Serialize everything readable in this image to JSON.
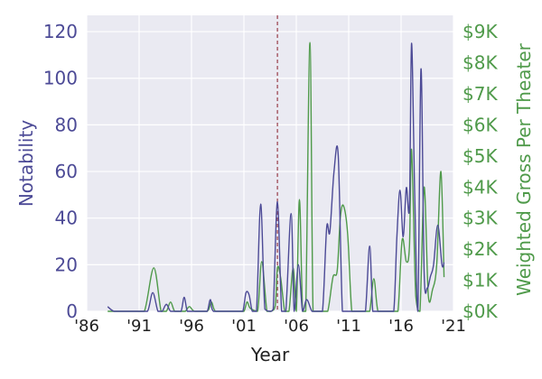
{
  "chart_data": {
    "type": "line",
    "xlabel": "Year",
    "ylabel_left": "Notability",
    "ylabel_right": "Weighted Gross Per Theater",
    "xlim": [
      1986,
      2021
    ],
    "ylim_left": [
      0,
      127
    ],
    "ylim_right": [
      0,
      9525
    ],
    "x_ticks": [
      1986,
      1991,
      1996,
      2001,
      2006,
      2011,
      2016,
      2021
    ],
    "x_tick_labels": [
      "'86",
      "'91",
      "'96",
      "'01",
      "'06",
      "'11",
      "'16",
      "'21"
    ],
    "y_ticks_left": [
      0,
      20,
      40,
      60,
      80,
      100,
      120
    ],
    "y_tick_labels_left": [
      "0",
      "20",
      "40",
      "60",
      "80",
      "100",
      "120"
    ],
    "y_ticks_right": [
      0,
      1000,
      2000,
      3000,
      4000,
      5000,
      6000,
      7000,
      8000,
      9000
    ],
    "y_tick_labels_right": [
      "$0K",
      "$1K",
      "$2K",
      "$3K",
      "$4K",
      "$5K",
      "$6K",
      "$7K",
      "$8K",
      "$9K"
    ],
    "vline_x": 2004.2,
    "grid": true,
    "colors": {
      "background": "#EAEAF2",
      "grid": "#FFFFFF",
      "left_series": "#4C4A96",
      "right_series": "#4F9A4A",
      "vline": "#9E4A55",
      "left_axis_text": "#4C4A96",
      "right_axis_text": "#4F9A4A"
    },
    "series": [
      {
        "axis": "left",
        "x": [
          1988.0,
          1988.6,
          1989.5,
          1991.0,
          1991.8,
          1992.3,
          1992.8,
          1993.2,
          1993.6,
          1994.0,
          1994.5,
          1995.0,
          1995.3,
          1995.6,
          1996.0,
          1997.0,
          1997.5,
          1997.8,
          1998.1,
          1999.5,
          2000.5,
          2000.9,
          2001.2,
          2001.5,
          2001.8,
          2002.2,
          2002.6,
          2003.0,
          2003.5,
          2003.8,
          2004.2,
          2004.6,
          2005.0,
          2005.5,
          2005.8,
          2006.2,
          2006.6,
          2007.0,
          2007.5,
          2008.0,
          2008.5,
          2008.9,
          2009.2,
          2009.6,
          2010.0,
          2010.4,
          2010.8,
          2011.2,
          2011.8,
          2012.2,
          2012.6,
          2013.0,
          2013.3,
          2013.7,
          2014.0,
          2014.8,
          2015.3,
          2015.6,
          2015.9,
          2016.2,
          2016.5,
          2016.8,
          2017.0,
          2017.3,
          2017.6,
          2017.9,
          2018.2,
          2018.5,
          2018.8,
          2019.1,
          2019.5,
          2019.9,
          2020.1
        ],
        "y": [
          2,
          0,
          0,
          0,
          0,
          8,
          0,
          0,
          3,
          0,
          0,
          0,
          6,
          0,
          0,
          0,
          0,
          5,
          0,
          0,
          0,
          0,
          8,
          7,
          0,
          0,
          46,
          1,
          0,
          1,
          47,
          0,
          0,
          42,
          0,
          20,
          0,
          5,
          0,
          0,
          0,
          36,
          34,
          60,
          67,
          0,
          0,
          0,
          0,
          0,
          0,
          28,
          0,
          0,
          0,
          0,
          0,
          32,
          52,
          32,
          53,
          45,
          115,
          50,
          0,
          104,
          17,
          10,
          15,
          20,
          37,
          20,
          21
        ]
      },
      {
        "axis": "right",
        "x": [
          1988.0,
          1990.5,
          1991.5,
          1992.4,
          1993.1,
          1993.6,
          1994.0,
          1994.4,
          1995.0,
          1995.4,
          1995.8,
          1996.3,
          1997.5,
          1997.9,
          1998.3,
          1999.5,
          2000.5,
          2001.0,
          2001.3,
          2001.6,
          2002.3,
          2002.7,
          2003.2,
          2003.6,
          2004.0,
          2004.2,
          2004.5,
          2004.9,
          2005.3,
          2005.7,
          2006.0,
          2006.3,
          2006.6,
          2006.9,
          2007.3,
          2007.6,
          2008.0,
          2008.5,
          2009.0,
          2009.5,
          2009.9,
          2010.2,
          2010.5,
          2010.9,
          2011.3,
          2011.8,
          2012.5,
          2013.0,
          2013.4,
          2013.8,
          2014.5,
          2015.2,
          2015.7,
          2016.1,
          2016.5,
          2016.8,
          2017.0,
          2017.4,
          2017.8,
          2018.2,
          2018.6,
          2019.0,
          2019.4,
          2019.8,
          2020.1
        ],
        "y": [
          0,
          0,
          0,
          1400,
          0,
          0,
          300,
          0,
          0,
          0,
          150,
          0,
          0,
          300,
          0,
          0,
          0,
          0,
          300,
          100,
          0,
          1600,
          0,
          0,
          200,
          1400,
          1100,
          0,
          0,
          1400,
          0,
          3600,
          0,
          0,
          8650,
          0,
          0,
          0,
          0,
          1100,
          1300,
          3000,
          3400,
          2500,
          0,
          0,
          0,
          0,
          1050,
          0,
          0,
          0,
          0,
          2300,
          1600,
          2100,
          5200,
          500,
          0,
          4000,
          500,
          700,
          1500,
          4500,
          1100
        ]
      }
    ]
  }
}
